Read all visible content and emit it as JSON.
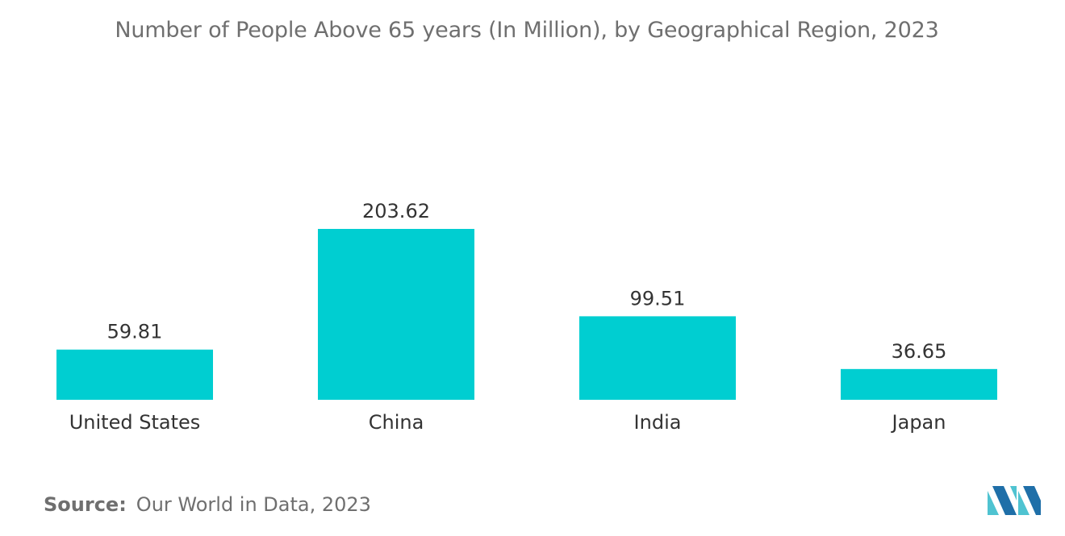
{
  "chart_data": {
    "type": "bar",
    "title": "Number of People Above 65 years (In Million), by Geographical Region, 2023",
    "categories": [
      "United States",
      "China",
      "India",
      "Japan"
    ],
    "values": [
      59.81,
      203.62,
      99.51,
      36.65
    ],
    "value_labels": [
      "59.81",
      "203.62",
      "99.51",
      "36.65"
    ],
    "xlabel": "",
    "ylabel": "",
    "ylim": [
      0,
      203.62
    ],
    "grid": false,
    "bar_color": "#00ced1"
  },
  "source": {
    "label": "Source:",
    "text": "Our World in Data, 2023"
  },
  "colors": {
    "text": "#333333",
    "muted": "#6f6f6f",
    "logo_dark": "#1f6fa8",
    "logo_light": "#4fc3d1"
  }
}
